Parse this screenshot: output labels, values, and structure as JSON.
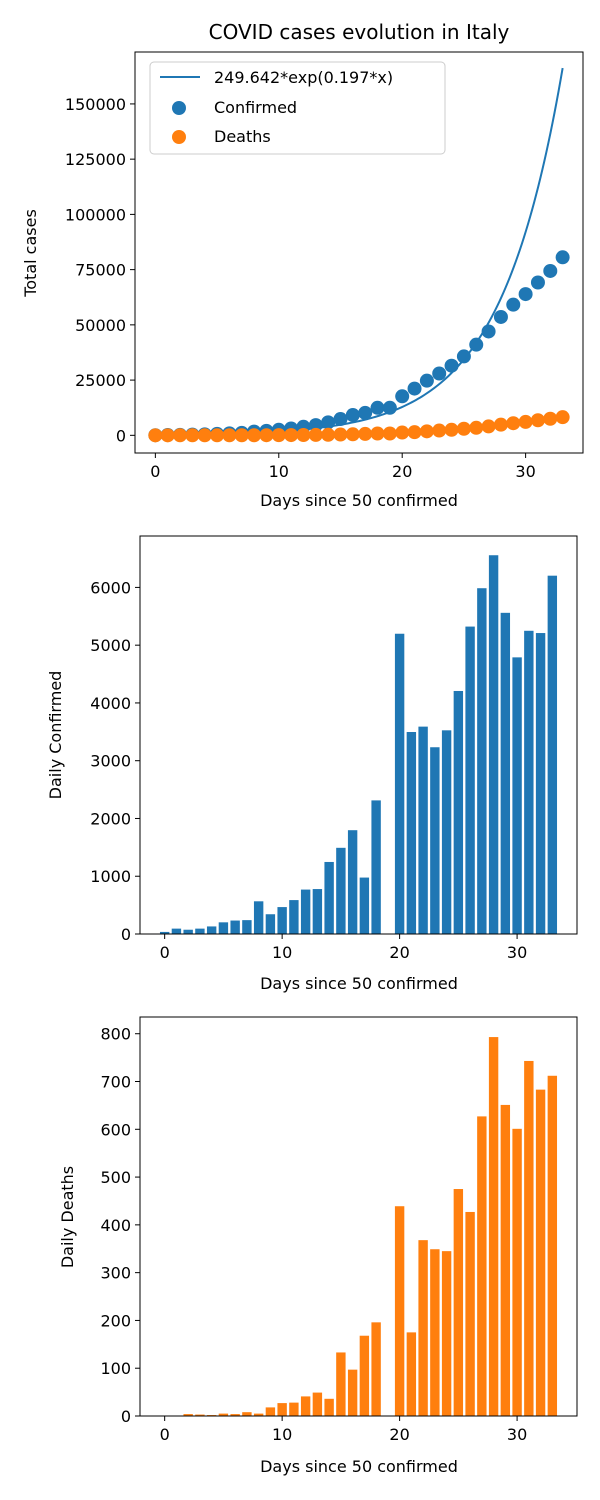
{
  "colors": {
    "confirmed": "#1f77b4",
    "deaths": "#ff7f0e",
    "fit": "#1f77b4"
  },
  "chart_data": [
    {
      "type": "scatter",
      "title": "COVID cases evolution in Italy",
      "xlabel": "Days since 50 confirmed",
      "ylabel": "Total cases",
      "xlim": [
        -1.65,
        34.65
      ],
      "ylim": [
        -8000,
        173500
      ],
      "xticks": [
        0,
        10,
        20,
        30
      ],
      "yticks": [
        0,
        25000,
        50000,
        75000,
        100000,
        125000,
        150000
      ],
      "legend": "top-left",
      "grid": false,
      "fit": {
        "name": "249.642*exp(0.197*x)",
        "a": 249.642,
        "b": 0.197,
        "x_range": [
          0,
          33
        ]
      },
      "series": [
        {
          "name": "Confirmed",
          "x": [
            0,
            1,
            2,
            3,
            4,
            5,
            6,
            7,
            8,
            9,
            10,
            11,
            12,
            13,
            14,
            15,
            16,
            17,
            18,
            19,
            20,
            21,
            22,
            23,
            24,
            25,
            26,
            27,
            28,
            29,
            30,
            31,
            32,
            33
          ],
          "values": [
            62,
            155,
            229,
            322,
            453,
            655,
            888,
            1128,
            1694,
            2036,
            2502,
            3089,
            3858,
            4636,
            5883,
            7375,
            9172,
            10149,
            12462,
            12462,
            17660,
            21157,
            24747,
            27980,
            31506,
            35713,
            41035,
            47021,
            53578,
            59138,
            63927,
            69176,
            74386,
            80589
          ]
        },
        {
          "name": "Deaths",
          "x": [
            0,
            1,
            2,
            3,
            4,
            5,
            6,
            7,
            8,
            9,
            10,
            11,
            12,
            13,
            14,
            15,
            16,
            17,
            18,
            19,
            20,
            21,
            22,
            23,
            24,
            25,
            26,
            27,
            28,
            29,
            30,
            31,
            32,
            33
          ],
          "values": [
            2,
            3,
            7,
            10,
            12,
            17,
            21,
            29,
            34,
            52,
            79,
            107,
            148,
            197,
            233,
            366,
            463,
            631,
            827,
            827,
            1266,
            1441,
            1809,
            2158,
            2503,
            2978,
            3405,
            4032,
            4825,
            5476,
            6077,
            6820,
            7503,
            8215
          ]
        }
      ]
    },
    {
      "type": "bar",
      "title": "",
      "xlabel": "Days since 50 confirmed",
      "ylabel": "Daily Confirmed",
      "xlim": [
        -2.1,
        35.1
      ],
      "ylim": [
        0,
        6890
      ],
      "xticks": [
        0,
        10,
        20,
        30
      ],
      "yticks": [
        0,
        1000,
        2000,
        3000,
        4000,
        5000,
        6000
      ],
      "grid": false,
      "series": [
        {
          "name": "",
          "x": [
            0,
            1,
            2,
            3,
            4,
            5,
            6,
            7,
            8,
            9,
            10,
            11,
            12,
            13,
            14,
            15,
            16,
            17,
            18,
            19,
            20,
            21,
            22,
            23,
            24,
            25,
            26,
            27,
            28,
            29,
            30,
            31,
            32,
            33
          ],
          "values": [
            36,
            93,
            74,
            93,
            131,
            202,
            233,
            240,
            566,
            342,
            466,
            587,
            769,
            778,
            1247,
            1492,
            1797,
            977,
            2313,
            0,
            5198,
            3497,
            3590,
            3233,
            3526,
            4207,
            5322,
            5986,
            6557,
            5560,
            4789,
            5249,
            5210,
            6203
          ]
        }
      ]
    },
    {
      "type": "bar",
      "title": "",
      "xlabel": "Days since 50 confirmed",
      "ylabel": "Daily Deaths",
      "xlim": [
        -2.1,
        35.1
      ],
      "ylim": [
        0,
        835
      ],
      "xticks": [
        0,
        10,
        20,
        30
      ],
      "yticks": [
        0,
        100,
        200,
        300,
        400,
        500,
        600,
        700,
        800
      ],
      "grid": false,
      "series": [
        {
          "name": "",
          "x": [
            0,
            1,
            2,
            3,
            4,
            5,
            6,
            7,
            8,
            9,
            10,
            11,
            12,
            13,
            14,
            15,
            16,
            17,
            18,
            19,
            20,
            21,
            22,
            23,
            24,
            25,
            26,
            27,
            28,
            29,
            30,
            31,
            32,
            33
          ],
          "values": [
            1,
            1,
            4,
            3,
            2,
            5,
            4,
            8,
            5,
            18,
            27,
            28,
            41,
            49,
            36,
            133,
            97,
            168,
            196,
            0,
            439,
            175,
            368,
            349,
            345,
            475,
            427,
            627,
            793,
            651,
            601,
            743,
            683,
            712
          ]
        }
      ]
    }
  ]
}
